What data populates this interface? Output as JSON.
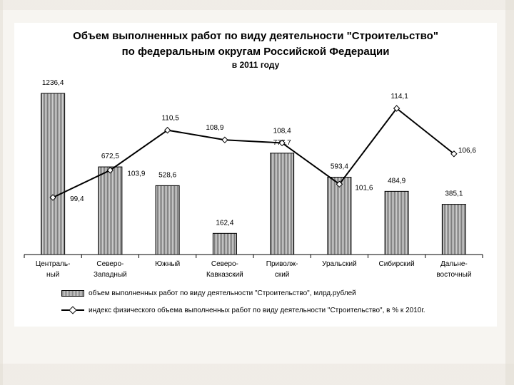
{
  "chart_data": {
    "type": "bar",
    "title": "Объем выполненных работ по виду деятельности \"Строительство\"",
    "subtitle": "по федеральным округам Российской Федерации",
    "subtitle2": "в 2011 году",
    "categories": [
      [
        "Централь-",
        "ный"
      ],
      [
        "Северо-",
        "Западный"
      ],
      [
        "Южный",
        ""
      ],
      [
        "Северо-",
        "Кавказский"
      ],
      [
        "Приволж-",
        "ский"
      ],
      [
        "Уральский",
        ""
      ],
      [
        "Сибирский",
        ""
      ],
      [
        "Дальне-",
        "восточный"
      ]
    ],
    "series": [
      {
        "name": "объем выполненных работ по виду деятельности \"Строительство\", млрд.рублей",
        "type": "bar",
        "values": [
          1236.4,
          672.5,
          528.6,
          162.4,
          777.7,
          593.4,
          484.9,
          385.1
        ],
        "labels": [
          "1236,4",
          "672,5",
          "528,6",
          "162,4",
          "777,7",
          "593,4",
          "484,9",
          "385,1"
        ],
        "ylim": [
          0,
          1300
        ],
        "color": "#b8b8b8"
      },
      {
        "name": "индекс физического объема выполненных работ по виду деятельности \"Строительство\", в % к 2010г.",
        "type": "line",
        "values": [
          99.4,
          103.9,
          110.5,
          108.9,
          108.4,
          101.6,
          114.1,
          106.6
        ],
        "labels": [
          "99,4",
          "103,9",
          "110,5",
          "108,9",
          "108,4",
          "101,6",
          "114,1",
          "106,6"
        ],
        "ylim": [
          90,
          120
        ],
        "color": "#000000"
      }
    ],
    "legend_position": "bottom",
    "grid": false
  }
}
